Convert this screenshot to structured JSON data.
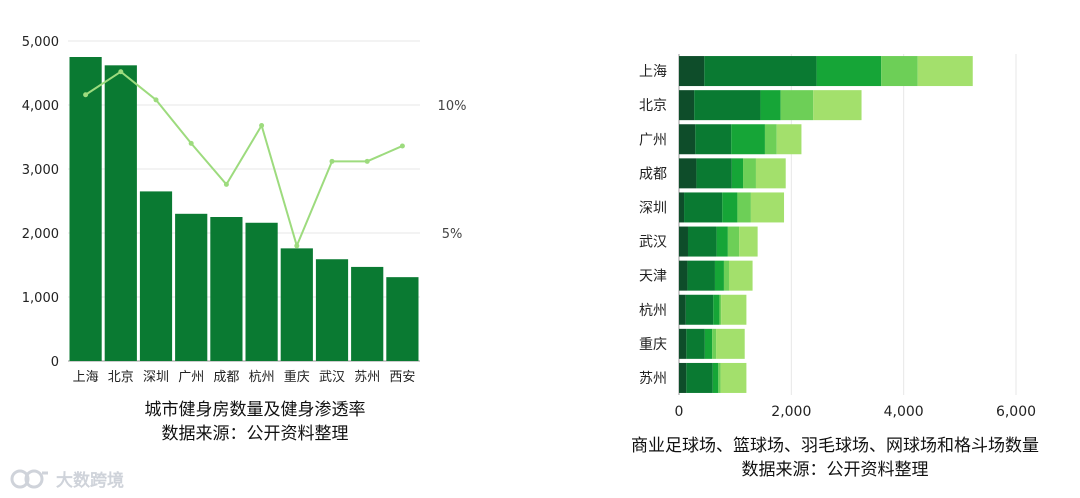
{
  "chart_data": [
    {
      "type": "bar",
      "title": "城市健身房数量及健身渗透率",
      "subtitle": "数据来源：公开资料整理",
      "categories": [
        "上海",
        "北京",
        "深圳",
        "广州",
        "成都",
        "杭州",
        "重庆",
        "武汉",
        "苏州",
        "西安"
      ],
      "series": [
        {
          "type": "bar",
          "axis": "left",
          "color": "#0a7a32",
          "values": [
            4750,
            4620,
            2650,
            2300,
            2250,
            2160,
            1760,
            1590,
            1470,
            1310
          ]
        },
        {
          "type": "line",
          "axis": "right",
          "color": "#9ddb7e",
          "values": [
            10.4,
            11.3,
            10.2,
            8.5,
            6.9,
            9.2,
            4.5,
            7.8,
            7.8,
            8.4
          ]
        }
      ],
      "y_left": {
        "min": 0,
        "max": 5000,
        "ticks": [
          0,
          1000,
          2000,
          3000,
          4000,
          5000
        ],
        "tick_labels": [
          "0",
          "1,000",
          "2,000",
          "3,000",
          "4,000",
          "5,000"
        ]
      },
      "y_right": {
        "ticks": [
          5,
          10
        ],
        "tick_labels": [
          "5%",
          "10%"
        ]
      },
      "grid": true
    },
    {
      "type": "stacked-bar-horizontal",
      "title": "商业足球场、篮球场、羽毛球场、网球场和格斗场数量",
      "subtitle": "数据来源：公开资料整理",
      "categories": [
        "上海",
        "北京",
        "广州",
        "成都",
        "深圳",
        "武汉",
        "天津",
        "杭州",
        "重庆",
        "苏州"
      ],
      "series": [
        {
          "color": "#0e4d2a",
          "values": [
            450,
            270,
            290,
            310,
            90,
            160,
            150,
            120,
            130,
            130
          ]
        },
        {
          "color": "#0a7a32",
          "values": [
            2000,
            1180,
            640,
            630,
            680,
            510,
            490,
            490,
            330,
            470
          ]
        },
        {
          "color": "#16a537",
          "values": [
            1150,
            360,
            600,
            200,
            270,
            200,
            160,
            110,
            130,
            100
          ]
        },
        {
          "color": "#6dcf57",
          "values": [
            650,
            580,
            210,
            230,
            240,
            200,
            90,
            30,
            70,
            40
          ]
        },
        {
          "color": "#a3e06c",
          "values": [
            980,
            860,
            440,
            530,
            590,
            330,
            420,
            450,
            510,
            460
          ]
        }
      ],
      "x_axis": {
        "min": 0,
        "max": 6000,
        "ticks": [
          0,
          2000,
          4000,
          6000
        ],
        "tick_labels": [
          "0",
          "2,000",
          "4,000",
          "6,000"
        ]
      },
      "grid": true
    }
  ],
  "watermark": {
    "text": "大数跨境"
  }
}
